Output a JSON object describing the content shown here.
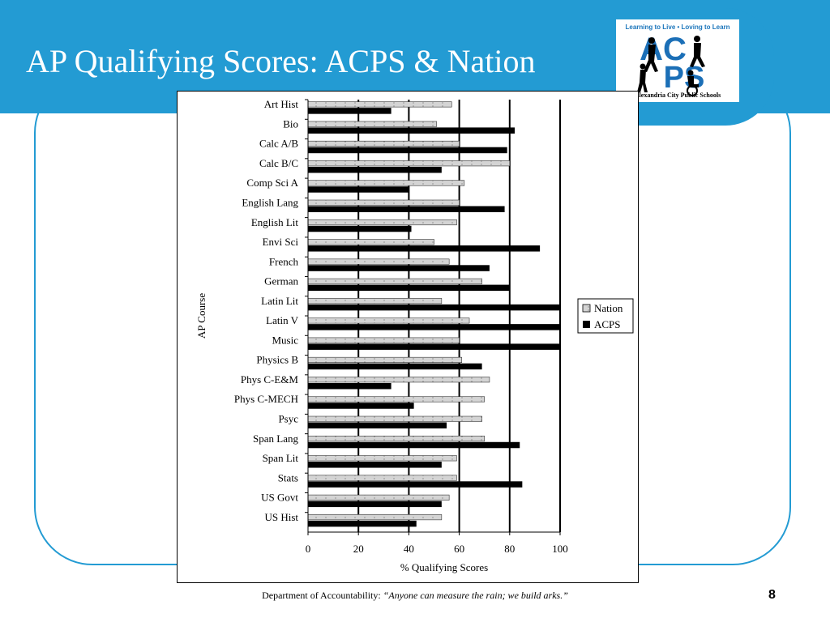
{
  "slide": {
    "title": "AP Qualifying Scores: ACPS & Nation",
    "page_number": "8"
  },
  "logo": {
    "tagline": "Learning to Live • Loving to Learn",
    "letters_top": "AC",
    "letters_bottom": "PS",
    "name": "Alexandria City Public Schools",
    "colors": {
      "tagline": "#1b75bb",
      "letters": "#1b6fb7",
      "figures": "#000000"
    }
  },
  "footer": {
    "dept": "Department of Accountability:",
    "motto": "“Anyone can measure the rain; we build arks.”"
  },
  "colors": {
    "header": "#239bd3",
    "nation_fill": "#d4d4d4",
    "acps_fill": "#000000",
    "frame": "#239bd3"
  },
  "chart_data": {
    "type": "bar",
    "orientation": "horizontal",
    "categories": [
      "Art Hist",
      "Bio",
      "Calc A/B",
      "Calc B/C",
      "Comp Sci A",
      "English Lang",
      "English Lit",
      "Envi Sci",
      "French",
      "German",
      "Latin Lit",
      "Latin V",
      "Music",
      "Physics B",
      "Phys C-E&M",
      "Phys C-MECH",
      "Psyc",
      "Span Lang",
      "Span Lit",
      "Stats",
      "US Govt",
      "US Hist"
    ],
    "series": [
      {
        "name": "Nation",
        "values": [
          57,
          51,
          60,
          80,
          62,
          60,
          59,
          50,
          56,
          69,
          53,
          64,
          60,
          61,
          72,
          70,
          69,
          70,
          59,
          59,
          56,
          53
        ]
      },
      {
        "name": "ACPS",
        "values": [
          33,
          82,
          79,
          53,
          40,
          78,
          41,
          92,
          72,
          80,
          100,
          100,
          100,
          69,
          33,
          42,
          55,
          84,
          53,
          85,
          53,
          43
        ]
      }
    ],
    "xlabel": "% Qualifying Scores",
    "ylabel": "AP Course",
    "xlim": [
      0,
      100
    ],
    "xticks": [
      "0",
      "20",
      "40",
      "60",
      "80",
      "100"
    ],
    "grid": true,
    "legend": "right"
  }
}
